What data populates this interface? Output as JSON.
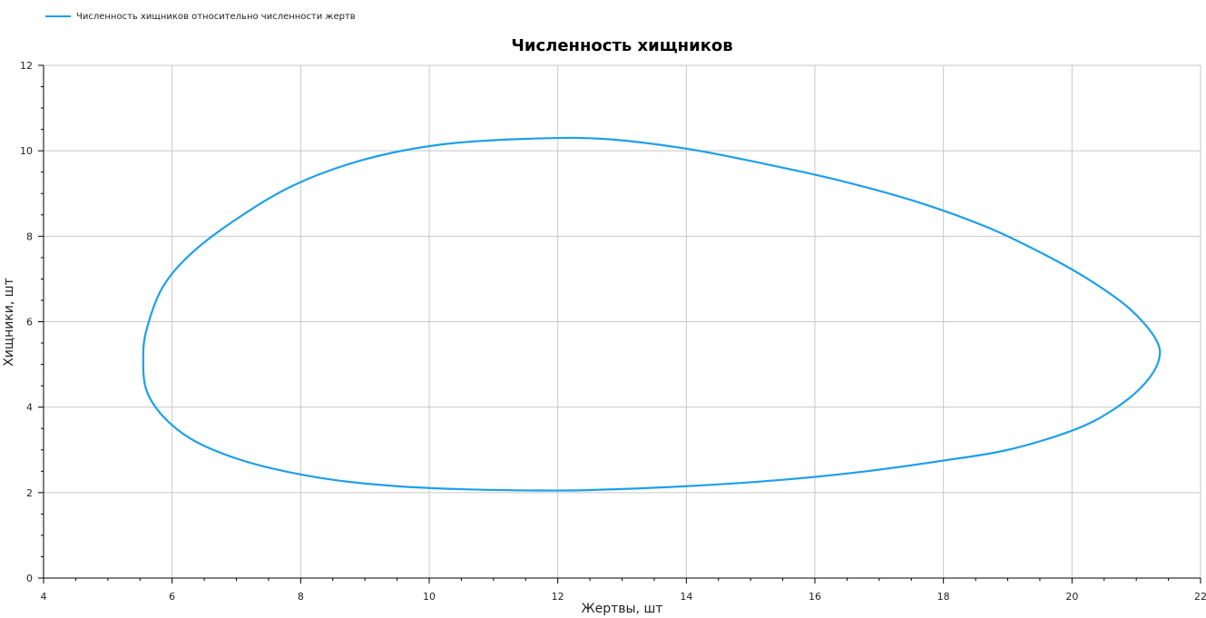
{
  "legend": {
    "label": "Численность хищников относительно численности жертв"
  },
  "chart_data": {
    "type": "line",
    "title": "Численность хищников",
    "xlabel": "Жертвы, шт",
    "ylabel": "Хищники, шт",
    "xlim": [
      4,
      22
    ],
    "ylim": [
      0,
      12
    ],
    "xticks": [
      4,
      6,
      8,
      10,
      12,
      14,
      16,
      18,
      20,
      22
    ],
    "yticks": [
      0,
      2,
      4,
      6,
      8,
      10,
      12
    ],
    "grid": true,
    "legend_position": "top-left",
    "color": "#1ea0ea",
    "series": [
      {
        "name": "Численность хищников относительно численности жертв",
        "x": [
          5.55,
          5.6,
          5.85,
          6.3,
          7.0,
          7.9,
          9.0,
          10.2,
          11.5,
          12.7,
          14.0,
          15.2,
          16.4,
          17.6,
          18.7,
          19.6,
          20.3,
          20.9,
          21.3,
          21.35,
          21.1,
          20.6,
          20.0,
          19.0,
          18.0,
          16.8,
          15.5,
          14.0,
          12.5,
          11.7,
          10.5,
          9.5,
          8.5,
          7.6,
          6.9,
          6.3,
          5.85,
          5.6,
          5.55
        ],
        "y": [
          5.1,
          5.8,
          6.8,
          7.6,
          8.4,
          9.2,
          9.8,
          10.15,
          10.28,
          10.28,
          10.05,
          9.7,
          9.3,
          8.8,
          8.2,
          7.55,
          6.95,
          6.3,
          5.6,
          5.1,
          4.5,
          3.9,
          3.45,
          3.0,
          2.75,
          2.5,
          2.3,
          2.15,
          2.06,
          2.05,
          2.08,
          2.15,
          2.3,
          2.55,
          2.85,
          3.25,
          3.8,
          4.4,
          5.1
        ]
      }
    ]
  }
}
